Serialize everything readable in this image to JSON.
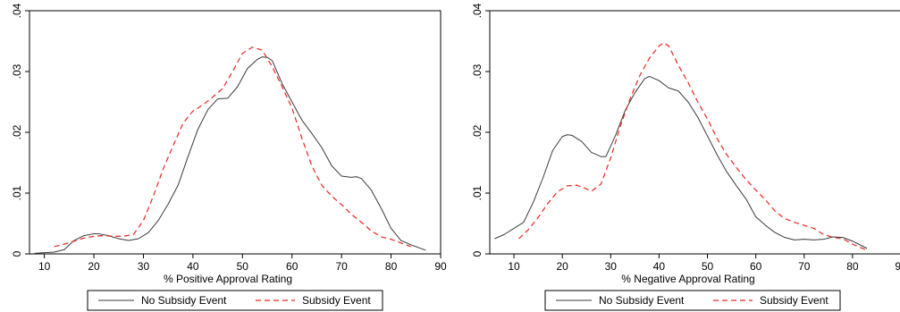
{
  "colors": {
    "no_subsidy": "#3a3a3a",
    "subsidy": "#e8251f",
    "frame": "#000000",
    "background": "#ffffff"
  },
  "chart_data": [
    {
      "type": "line",
      "title": "",
      "xlabel": "% Positive Approval Rating",
      "ylabel": "",
      "xlim": [
        7,
        90
      ],
      "ylim": [
        0,
        0.04
      ],
      "xticks": [
        10,
        20,
        30,
        40,
        50,
        60,
        70,
        80,
        90
      ],
      "xtick_labels": [
        "10",
        "20",
        "30",
        "40",
        "50",
        "60",
        "70",
        "80",
        "90"
      ],
      "yticks": [
        0,
        0.01,
        0.02,
        0.03,
        0.04
      ],
      "ytick_labels": [
        "0",
        ".01",
        ".02",
        ".03",
        ".04"
      ],
      "grid": false,
      "legend_position": "bottom",
      "series": [
        {
          "name": "No Subsidy Event",
          "style": "solid",
          "x": [
            8,
            10,
            12,
            14,
            16,
            18,
            20,
            21,
            23,
            25,
            27,
            29,
            31,
            33,
            35,
            37,
            39,
            41,
            43,
            45,
            47,
            49,
            51,
            53,
            54,
            55,
            56,
            58,
            60,
            62,
            64,
            66,
            68,
            70,
            72,
            73,
            74,
            76,
            78,
            80,
            82,
            84,
            87
          ],
          "values": [
            0.0001,
            0.0002,
            0.0003,
            0.0007,
            0.0022,
            0.003,
            0.0033,
            0.0033,
            0.003,
            0.0025,
            0.0022,
            0.0025,
            0.0035,
            0.0055,
            0.0082,
            0.0113,
            0.016,
            0.0205,
            0.0237,
            0.0255,
            0.0256,
            0.0275,
            0.0305,
            0.032,
            0.0324,
            0.0323,
            0.0318,
            0.028,
            0.025,
            0.022,
            0.0198,
            0.0175,
            0.0145,
            0.0128,
            0.0126,
            0.0127,
            0.0124,
            0.0105,
            0.0075,
            0.0042,
            0.0022,
            0.0015,
            0.0006
          ]
        },
        {
          "name": "Subsidy Event",
          "style": "dashed",
          "x": [
            12,
            14,
            16,
            18,
            20,
            22,
            24,
            26,
            28,
            30,
            32,
            34,
            36,
            38,
            40,
            42,
            44,
            46,
            48,
            50,
            52,
            54,
            56,
            58,
            60,
            62,
            64,
            66,
            68,
            70,
            72,
            74,
            76,
            78,
            80,
            82,
            84
          ],
          "values": [
            0.0012,
            0.0016,
            0.0021,
            0.0026,
            0.0029,
            0.003,
            0.0029,
            0.0029,
            0.0032,
            0.0055,
            0.0095,
            0.014,
            0.0178,
            0.0215,
            0.0235,
            0.0245,
            0.0258,
            0.0272,
            0.03,
            0.033,
            0.034,
            0.0335,
            0.0308,
            0.0275,
            0.024,
            0.019,
            0.0145,
            0.0113,
            0.0095,
            0.0081,
            0.0065,
            0.0052,
            0.0038,
            0.0028,
            0.0024,
            0.0018,
            0.0012
          ]
        }
      ]
    },
    {
      "type": "line",
      "title": "",
      "xlabel": "% Negative Approval Rating",
      "ylabel": "",
      "xlim": [
        5,
        90
      ],
      "ylim": [
        0,
        0.04
      ],
      "xticks": [
        10,
        20,
        30,
        40,
        50,
        60,
        70,
        80,
        90
      ],
      "xtick_labels": [
        "10",
        "20",
        "30",
        "40",
        "50",
        "60",
        "70",
        "80",
        "90"
      ],
      "yticks": [
        0,
        0.01,
        0.02,
        0.03,
        0.04
      ],
      "ytick_labels": [
        "0",
        ".01",
        ".02",
        ".03",
        ".04"
      ],
      "grid": false,
      "legend_position": "bottom",
      "series": [
        {
          "name": "No Subsidy Event",
          "style": "solid",
          "x": [
            6,
            8,
            10,
            12,
            14,
            16,
            18,
            20,
            21,
            22,
            23,
            24,
            26,
            28,
            29,
            31,
            33,
            35,
            37,
            38,
            40,
            42,
            44,
            46,
            48,
            50,
            52,
            54,
            56,
            58,
            60,
            62,
            64,
            66,
            68,
            70,
            72,
            74,
            76,
            78,
            80,
            83
          ],
          "values": [
            0.0025,
            0.0032,
            0.0042,
            0.0052,
            0.0085,
            0.0125,
            0.017,
            0.0193,
            0.0196,
            0.0195,
            0.019,
            0.0185,
            0.0167,
            0.016,
            0.016,
            0.0195,
            0.0236,
            0.0265,
            0.0288,
            0.0292,
            0.0285,
            0.0273,
            0.0268,
            0.025,
            0.0225,
            0.0194,
            0.0163,
            0.0135,
            0.0112,
            0.009,
            0.0061,
            0.0047,
            0.0035,
            0.0027,
            0.0023,
            0.0024,
            0.0023,
            0.0024,
            0.0028,
            0.0027,
            0.0021,
            0.0009
          ]
        },
        {
          "name": "Subsidy Event",
          "style": "dashed",
          "x": [
            11,
            13,
            15,
            17,
            19,
            21,
            23,
            25,
            26,
            28,
            30,
            32,
            34,
            36,
            38,
            40,
            41,
            42,
            44,
            46,
            48,
            50,
            52,
            54,
            56,
            58,
            60,
            62,
            64,
            66,
            68,
            70,
            72,
            74,
            76,
            78,
            80,
            83
          ],
          "values": [
            0.0025,
            0.004,
            0.006,
            0.0083,
            0.0102,
            0.0112,
            0.0113,
            0.0107,
            0.0103,
            0.0115,
            0.0158,
            0.021,
            0.0255,
            0.0293,
            0.0322,
            0.0342,
            0.0347,
            0.0342,
            0.031,
            0.0282,
            0.025,
            0.0222,
            0.019,
            0.0163,
            0.0142,
            0.0122,
            0.0105,
            0.0089,
            0.007,
            0.0058,
            0.0052,
            0.0047,
            0.0042,
            0.0032,
            0.0027,
            0.0025,
            0.0016,
            0.0006
          ]
        }
      ]
    }
  ]
}
